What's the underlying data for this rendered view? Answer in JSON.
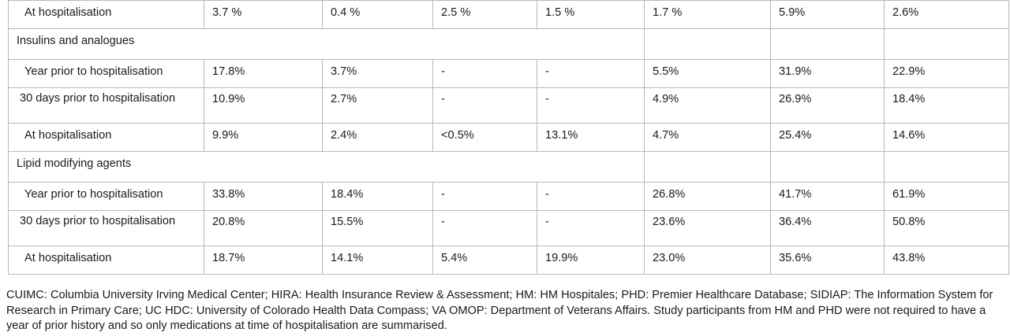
{
  "rows": [
    {
      "type": "row",
      "label": "At hospitalisation",
      "values": [
        "3.7 %",
        "0.4 %",
        "2.5 %",
        "1.5 %",
        "1.7 %",
        "5.9%",
        "2.6%"
      ]
    },
    {
      "type": "section",
      "label": "Insulins and analogues"
    },
    {
      "type": "row",
      "label": "Year prior to hospitalisation",
      "values": [
        "17.8%",
        "3.7%",
        "-",
        "-",
        "5.5%",
        "31.9%",
        "22.9%"
      ]
    },
    {
      "type": "row2",
      "label": "30 days prior to hospitalisation",
      "values": [
        "10.9%",
        "2.7%",
        "-",
        "-",
        "4.9%",
        "26.9%",
        "18.4%"
      ]
    },
    {
      "type": "row",
      "label": "At hospitalisation",
      "values": [
        "9.9%",
        "2.4%",
        "<0.5%",
        "13.1%",
        "4.7%",
        "25.4%",
        "14.6%"
      ]
    },
    {
      "type": "section",
      "label": "Lipid modifying agents"
    },
    {
      "type": "row",
      "label": "Year prior to hospitalisation",
      "values": [
        "33.8%",
        "18.4%",
        "-",
        "-",
        "26.8%",
        "41.7%",
        "61.9%"
      ]
    },
    {
      "type": "row2",
      "label": "30 days prior to hospitalisation",
      "values": [
        "20.8%",
        "15.5%",
        "-",
        "-",
        "23.6%",
        "36.4%",
        "50.8%"
      ]
    },
    {
      "type": "row",
      "label": "At hospitalisation",
      "values": [
        "18.7%",
        "14.1%",
        "5.4%",
        "19.9%",
        "23.0%",
        "35.6%",
        "43.8%"
      ]
    }
  ],
  "footnote": "CUIMC: Columbia University Irving Medical Center; HIRA: Health Insurance Review & Assessment; HM: HM Hospitales; PHD: Premier Healthcare Database; SIDIAP: The Information System for Research in Primary Care; UC HDC: University of Colorado Health Data Compass; VA OMOP: Department of Veterans Affairs. Study participants from HM and PHD were not required to have a year of prior history and so only medications at time of hospitalisation are summarised."
}
